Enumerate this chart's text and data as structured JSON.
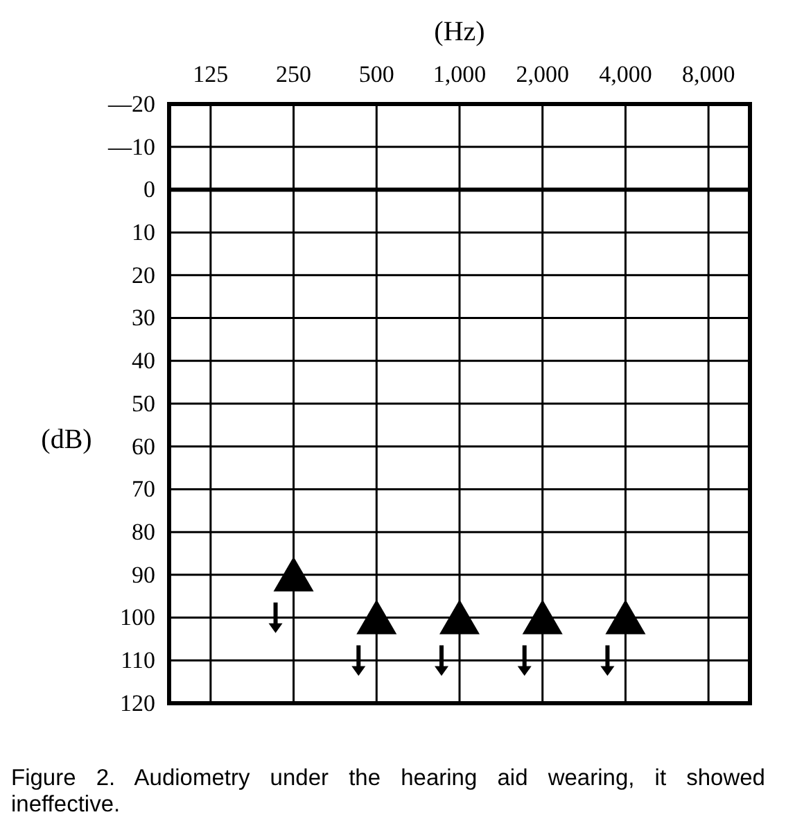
{
  "chart_data": {
    "type": "scatter",
    "xlabel": "(Hz)",
    "ylabel": "(dB)",
    "categories": [
      "125",
      "250",
      "500",
      "1,000",
      "2,000",
      "4,000",
      "8,000"
    ],
    "series": [
      {
        "color": "#000000",
        "values": [
          null,
          90,
          100,
          100,
          100,
          100,
          null
        ]
      }
    ],
    "ylim": [
      120,
      -20
    ],
    "yticks": [
      {
        "value": -20,
        "label": "—20"
      },
      {
        "value": -10,
        "label": "—10"
      },
      0,
      10,
      20,
      30,
      40,
      50,
      60,
      70,
      80,
      90,
      100,
      110,
      120
    ],
    "ref_lines": [
      {
        "axis": "y",
        "value": 0
      }
    ],
    "grid": true,
    "marker": "triangle",
    "annotations": [
      "Figure 2. Audiometry under the hearing aid wearing, it showed ineffective."
    ]
  }
}
